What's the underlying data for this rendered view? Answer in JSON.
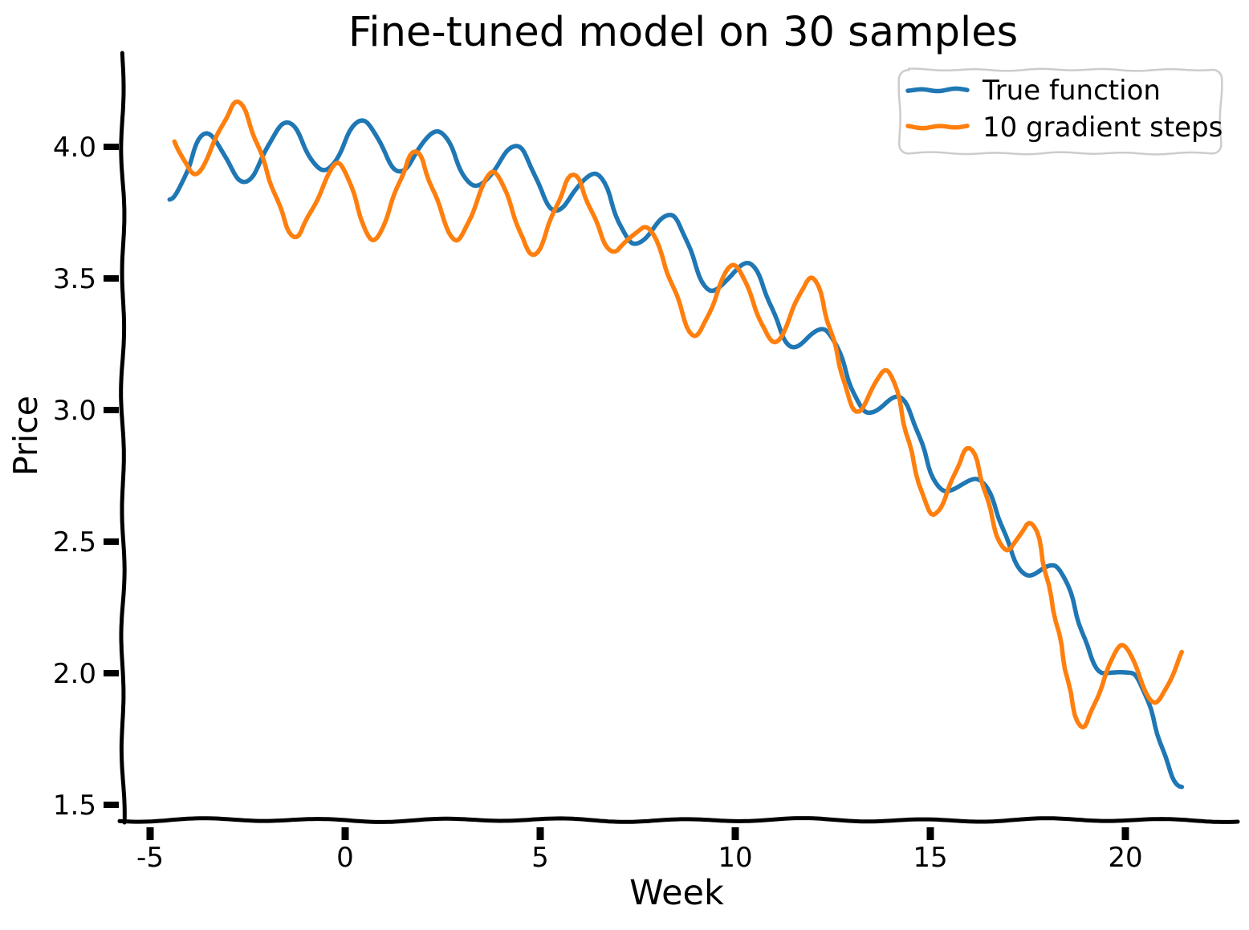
{
  "figure": {
    "background": "#ffffff",
    "axis_color": "#000000",
    "style": "xkcd-sketch"
  },
  "chart_data": {
    "type": "line",
    "title": "Fine-tuned model on 30 samples",
    "xlabel": "Week",
    "ylabel": "Price",
    "xlim": [
      -5.7,
      22.8
    ],
    "ylim": [
      1.42,
      4.35
    ],
    "grid": false,
    "x_tick_labels": [
      "-5",
      "0",
      "5",
      "10",
      "15",
      "20"
    ],
    "x_tick_values": [
      -5,
      0,
      5,
      10,
      15,
      20
    ],
    "y_tick_labels": [
      "4.0",
      "3.5",
      "3.0",
      "2.5",
      "2.0",
      "1.5"
    ],
    "y_tick_values": [
      4.0,
      3.5,
      3.0,
      2.5,
      2.0,
      1.5
    ],
    "legend": {
      "location": "upper right",
      "entries": [
        "True function",
        "10 gradient steps"
      ]
    },
    "series": [
      {
        "name": "True function",
        "color": "#1f77b4",
        "line_width": 5.5,
        "interpolation": "cosine",
        "points": [
          [
            -4.5,
            3.8
          ],
          [
            -3.55,
            4.05
          ],
          [
            -2.6,
            3.87
          ],
          [
            -1.5,
            4.09
          ],
          [
            -0.55,
            3.91
          ],
          [
            0.45,
            4.1
          ],
          [
            1.4,
            3.91
          ],
          [
            2.35,
            4.06
          ],
          [
            3.35,
            3.85
          ],
          [
            4.4,
            4.0
          ],
          [
            5.4,
            3.76
          ],
          [
            6.4,
            3.9
          ],
          [
            7.4,
            3.63
          ],
          [
            8.35,
            3.74
          ],
          [
            9.4,
            3.45
          ],
          [
            10.3,
            3.56
          ],
          [
            11.5,
            3.24
          ],
          [
            12.25,
            3.31
          ],
          [
            13.4,
            2.99
          ],
          [
            14.15,
            3.05
          ],
          [
            15.4,
            2.69
          ],
          [
            16.15,
            2.74
          ],
          [
            17.55,
            2.37
          ],
          [
            18.15,
            2.41
          ],
          [
            19.45,
            2.0
          ],
          [
            20.15,
            2.0
          ],
          [
            21.45,
            1.57
          ]
        ]
      },
      {
        "name": "10 gradient steps",
        "color": "#ff7f0e",
        "line_width": 5.5,
        "interpolation": "linear",
        "points": [
          [
            -4.45,
            4.05
          ],
          [
            -3.85,
            3.86
          ],
          [
            -2.75,
            4.21
          ],
          [
            -1.3,
            3.62
          ],
          [
            -0.15,
            3.98
          ],
          [
            0.7,
            3.6
          ],
          [
            1.8,
            4.02
          ],
          [
            2.85,
            3.6
          ],
          [
            3.8,
            3.95
          ],
          [
            4.8,
            3.55
          ],
          [
            5.85,
            3.93
          ],
          [
            6.8,
            3.58
          ],
          [
            7.8,
            3.72
          ],
          [
            8.95,
            3.24
          ],
          [
            9.95,
            3.59
          ],
          [
            11.0,
            3.22
          ],
          [
            12.0,
            3.55
          ],
          [
            13.05,
            2.96
          ],
          [
            13.95,
            3.19
          ],
          [
            14.9,
            2.6
          ],
          [
            15.2,
            2.6
          ],
          [
            16.0,
            2.9
          ],
          [
            16.9,
            2.43
          ],
          [
            17.65,
            2.61
          ],
          [
            18.85,
            1.74
          ],
          [
            19.9,
            2.15
          ],
          [
            20.75,
            1.85
          ],
          [
            21.55,
            2.11
          ]
        ]
      }
    ]
  }
}
